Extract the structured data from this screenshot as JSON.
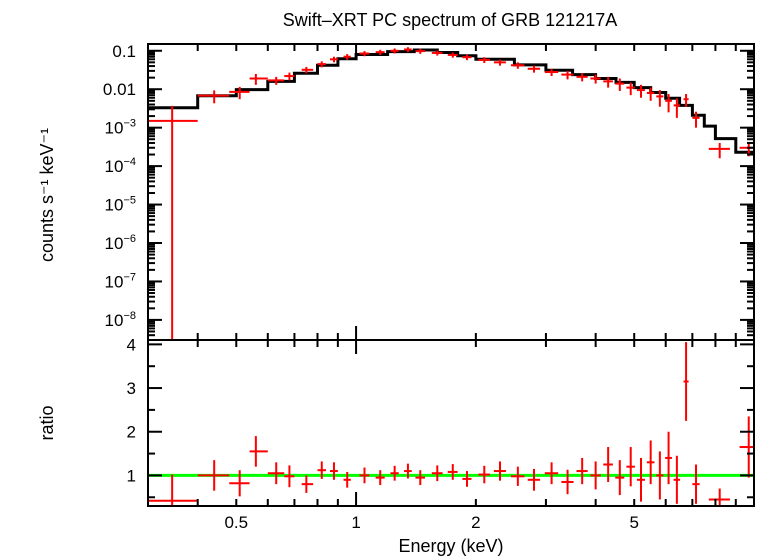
{
  "chart_data": [
    {
      "type": "scatter",
      "panel": "spectrum",
      "title": "Swift–XRT PC spectrum of GRB 121217A",
      "ylabel": "counts s⁻¹ keV⁻¹",
      "xlabel": "",
      "xscale": "log",
      "yscale": "log",
      "xlim": [
        0.3,
        10
      ],
      "ylim": [
        3e-09,
        0.15
      ],
      "grid": false,
      "ytick_labels": [
        {
          "value": 0.1,
          "label": "0.1"
        },
        {
          "value": 0.01,
          "label": "0.01"
        },
        {
          "value": 0.001,
          "label": "10",
          "exp": "−3"
        },
        {
          "value": 0.0001,
          "label": "10",
          "exp": "−4"
        },
        {
          "value": 1e-05,
          "label": "10",
          "exp": "−5"
        },
        {
          "value": 1e-06,
          "label": "10",
          "exp": "−6"
        },
        {
          "value": 1e-07,
          "label": "10",
          "exp": "−7"
        },
        {
          "value": 1e-08,
          "label": "10",
          "exp": "−8"
        }
      ],
      "colors": {
        "data": "#ff0000",
        "model": "#000000"
      },
      "model": {
        "edges": [
          0.3,
          0.4,
          0.5,
          0.6,
          0.7,
          0.8,
          0.9,
          1.0,
          1.2,
          1.4,
          1.6,
          1.8,
          2.0,
          2.5,
          3.0,
          3.5,
          4.0,
          4.5,
          5.0,
          5.5,
          6.0,
          6.5,
          7.0,
          7.5,
          8.0,
          9.0,
          10.0
        ],
        "values": [
          0.0033,
          0.0068,
          0.0098,
          0.016,
          0.026,
          0.042,
          0.062,
          0.08,
          0.095,
          0.105,
          0.09,
          0.074,
          0.06,
          0.043,
          0.031,
          0.024,
          0.019,
          0.015,
          0.011,
          0.0082,
          0.0058,
          0.0038,
          0.0021,
          0.0011,
          0.00052,
          0.00023
        ]
      },
      "points": [
        {
          "x": 0.345,
          "xerr": [
            0.045,
            0.055
          ],
          "y": 0.0015,
          "yerr": [
            0.0015,
            0.0022
          ]
        },
        {
          "x": 0.44,
          "xerr": [
            0.04,
            0.04
          ],
          "y": 0.0068,
          "yerr": [
            0.0025,
            0.0025
          ]
        },
        {
          "x": 0.51,
          "xerr": [
            0.03,
            0.03
          ],
          "y": 0.0085,
          "yerr": [
            0.003,
            0.003
          ]
        },
        {
          "x": 0.56,
          "xerr": [
            0.02,
            0.04
          ],
          "y": 0.019,
          "yerr": [
            0.006,
            0.006
          ]
        },
        {
          "x": 0.63,
          "xerr": [
            0.03,
            0.03
          ],
          "y": 0.017,
          "yerr": [
            0.004,
            0.004
          ]
        },
        {
          "x": 0.68,
          "xerr": [
            0.02,
            0.02
          ],
          "y": 0.022,
          "yerr": [
            0.005,
            0.005
          ]
        },
        {
          "x": 0.75,
          "xerr": [
            0.02,
            0.03
          ],
          "y": 0.032,
          "yerr": [
            0.006,
            0.006
          ]
        },
        {
          "x": 0.82,
          "xerr": [
            0.02,
            0.02
          ],
          "y": 0.045,
          "yerr": [
            0.008,
            0.008
          ]
        },
        {
          "x": 0.88,
          "xerr": [
            0.02,
            0.02
          ],
          "y": 0.06,
          "yerr": [
            0.01,
            0.01
          ]
        },
        {
          "x": 0.95,
          "xerr": [
            0.02,
            0.02
          ],
          "y": 0.07,
          "yerr": [
            0.012,
            0.012
          ]
        },
        {
          "x": 1.05,
          "xerr": [
            0.03,
            0.03
          ],
          "y": 0.085,
          "yerr": [
            0.013,
            0.013
          ]
        },
        {
          "x": 1.15,
          "xerr": [
            0.03,
            0.03
          ],
          "y": 0.092,
          "yerr": [
            0.014,
            0.014
          ]
        },
        {
          "x": 1.25,
          "xerr": [
            0.03,
            0.03
          ],
          "y": 0.1,
          "yerr": [
            0.015,
            0.015
          ]
        },
        {
          "x": 1.35,
          "xerr": [
            0.03,
            0.03
          ],
          "y": 0.108,
          "yerr": [
            0.016,
            0.016
          ]
        },
        {
          "x": 1.45,
          "xerr": [
            0.04,
            0.04
          ],
          "y": 0.098,
          "yerr": [
            0.015,
            0.015
          ]
        },
        {
          "x": 1.6,
          "xerr": [
            0.05,
            0.05
          ],
          "y": 0.088,
          "yerr": [
            0.013,
            0.013
          ]
        },
        {
          "x": 1.75,
          "xerr": [
            0.05,
            0.05
          ],
          "y": 0.078,
          "yerr": [
            0.012,
            0.012
          ]
        },
        {
          "x": 1.9,
          "xerr": [
            0.05,
            0.05
          ],
          "y": 0.068,
          "yerr": [
            0.011,
            0.011
          ]
        },
        {
          "x": 2.1,
          "xerr": [
            0.07,
            0.07
          ],
          "y": 0.058,
          "yerr": [
            0.01,
            0.01
          ]
        },
        {
          "x": 2.3,
          "xerr": [
            0.08,
            0.08
          ],
          "y": 0.05,
          "yerr": [
            0.009,
            0.009
          ]
        },
        {
          "x": 2.55,
          "xerr": [
            0.1,
            0.1
          ],
          "y": 0.042,
          "yerr": [
            0.008,
            0.008
          ]
        },
        {
          "x": 2.8,
          "xerr": [
            0.1,
            0.1
          ],
          "y": 0.034,
          "yerr": [
            0.007,
            0.007
          ]
        },
        {
          "x": 3.1,
          "xerr": [
            0.12,
            0.12
          ],
          "y": 0.028,
          "yerr": [
            0.006,
            0.006
          ]
        },
        {
          "x": 3.4,
          "xerr": [
            0.12,
            0.12
          ],
          "y": 0.024,
          "yerr": [
            0.006,
            0.006
          ]
        },
        {
          "x": 3.7,
          "xerr": [
            0.12,
            0.12
          ],
          "y": 0.021,
          "yerr": [
            0.005,
            0.005
          ]
        },
        {
          "x": 4.0,
          "xerr": [
            0.12,
            0.12
          ],
          "y": 0.019,
          "yerr": [
            0.005,
            0.005
          ]
        },
        {
          "x": 4.3,
          "xerr": [
            0.12,
            0.12
          ],
          "y": 0.016,
          "yerr": [
            0.005,
            0.005
          ]
        },
        {
          "x": 4.6,
          "xerr": [
            0.12,
            0.12
          ],
          "y": 0.014,
          "yerr": [
            0.005,
            0.005
          ]
        },
        {
          "x": 4.9,
          "xerr": [
            0.12,
            0.12
          ],
          "y": 0.011,
          "yerr": [
            0.004,
            0.004
          ]
        },
        {
          "x": 5.2,
          "xerr": [
            0.12,
            0.12
          ],
          "y": 0.0095,
          "yerr": [
            0.0035,
            0.0035
          ]
        },
        {
          "x": 5.5,
          "xerr": [
            0.12,
            0.12
          ],
          "y": 0.008,
          "yerr": [
            0.003,
            0.003
          ]
        },
        {
          "x": 5.8,
          "xerr": [
            0.12,
            0.12
          ],
          "y": 0.0065,
          "yerr": [
            0.003,
            0.003
          ]
        },
        {
          "x": 6.1,
          "xerr": [
            0.12,
            0.12
          ],
          "y": 0.005,
          "yerr": [
            0.0025,
            0.0025
          ]
        },
        {
          "x": 6.4,
          "xerr": [
            0.12,
            0.12
          ],
          "y": 0.0038,
          "yerr": [
            0.002,
            0.002
          ]
        },
        {
          "x": 6.75,
          "xerr": [
            0.1,
            0.1
          ],
          "y": 0.0055,
          "yerr": [
            0.002,
            0.002
          ]
        },
        {
          "x": 7.15,
          "xerr": [
            0.15,
            0.15
          ],
          "y": 0.0018,
          "yerr": [
            0.0008,
            0.0008
          ]
        },
        {
          "x": 8.2,
          "xerr": [
            0.5,
            0.5
          ],
          "y": 0.00028,
          "yerr": [
            0.00012,
            0.00012
          ]
        },
        {
          "x": 9.7,
          "xerr": [
            0.5,
            0.3
          ],
          "y": 0.0003,
          "yerr": [
            0.00012,
            0.00012
          ]
        }
      ]
    },
    {
      "type": "scatter",
      "panel": "ratio",
      "xlabel": "Energy (keV)",
      "ylabel": "ratio",
      "xscale": "log",
      "yscale": "linear",
      "xlim": [
        0.3,
        10
      ],
      "ylim": [
        0.3,
        4.1
      ],
      "grid": false,
      "xtick_labels": [
        {
          "value": 0.5,
          "label": "0.5"
        },
        {
          "value": 1,
          "label": "1"
        },
        {
          "value": 2,
          "label": "2"
        },
        {
          "value": 5,
          "label": "5"
        }
      ],
      "ytick_labels": [
        {
          "value": 1,
          "label": "1"
        },
        {
          "value": 2,
          "label": "2"
        },
        {
          "value": 3,
          "label": "3"
        },
        {
          "value": 4,
          "label": "4"
        }
      ],
      "reference_line": {
        "y": 1,
        "color": "#00ff00"
      },
      "colors": {
        "data": "#ff0000"
      },
      "points": [
        {
          "x": 0.345,
          "xerr": [
            0.045,
            0.055
          ],
          "y": 0.42,
          "yerr": [
            0.42,
            0.6
          ]
        },
        {
          "x": 0.44,
          "xerr": [
            0.04,
            0.04
          ],
          "y": 1.0,
          "yerr": [
            0.35,
            0.35
          ]
        },
        {
          "x": 0.51,
          "xerr": [
            0.03,
            0.03
          ],
          "y": 0.82,
          "yerr": [
            0.3,
            0.3
          ]
        },
        {
          "x": 0.56,
          "xerr": [
            0.02,
            0.04
          ],
          "y": 1.55,
          "yerr": [
            0.35,
            0.35
          ]
        },
        {
          "x": 0.63,
          "xerr": [
            0.03,
            0.03
          ],
          "y": 1.05,
          "yerr": [
            0.25,
            0.25
          ]
        },
        {
          "x": 0.68,
          "xerr": [
            0.02,
            0.02
          ],
          "y": 0.98,
          "yerr": [
            0.25,
            0.25
          ]
        },
        {
          "x": 0.75,
          "xerr": [
            0.02,
            0.03
          ],
          "y": 0.8,
          "yerr": [
            0.2,
            0.2
          ]
        },
        {
          "x": 0.82,
          "xerr": [
            0.02,
            0.02
          ],
          "y": 1.12,
          "yerr": [
            0.2,
            0.2
          ]
        },
        {
          "x": 0.88,
          "xerr": [
            0.02,
            0.02
          ],
          "y": 1.1,
          "yerr": [
            0.2,
            0.2
          ]
        },
        {
          "x": 0.95,
          "xerr": [
            0.02,
            0.02
          ],
          "y": 0.9,
          "yerr": [
            0.18,
            0.18
          ]
        },
        {
          "x": 1.05,
          "xerr": [
            0.03,
            0.03
          ],
          "y": 1.0,
          "yerr": [
            0.18,
            0.18
          ]
        },
        {
          "x": 1.15,
          "xerr": [
            0.03,
            0.03
          ],
          "y": 0.95,
          "yerr": [
            0.17,
            0.17
          ]
        },
        {
          "x": 1.25,
          "xerr": [
            0.03,
            0.03
          ],
          "y": 1.05,
          "yerr": [
            0.17,
            0.17
          ]
        },
        {
          "x": 1.35,
          "xerr": [
            0.03,
            0.03
          ],
          "y": 1.1,
          "yerr": [
            0.17,
            0.17
          ]
        },
        {
          "x": 1.45,
          "xerr": [
            0.04,
            0.04
          ],
          "y": 0.95,
          "yerr": [
            0.17,
            0.17
          ]
        },
        {
          "x": 1.6,
          "xerr": [
            0.05,
            0.05
          ],
          "y": 1.05,
          "yerr": [
            0.18,
            0.18
          ]
        },
        {
          "x": 1.75,
          "xerr": [
            0.05,
            0.05
          ],
          "y": 1.08,
          "yerr": [
            0.18,
            0.18
          ]
        },
        {
          "x": 1.9,
          "xerr": [
            0.05,
            0.05
          ],
          "y": 0.92,
          "yerr": [
            0.18,
            0.18
          ]
        },
        {
          "x": 2.1,
          "xerr": [
            0.07,
            0.07
          ],
          "y": 1.02,
          "yerr": [
            0.2,
            0.2
          ]
        },
        {
          "x": 2.3,
          "xerr": [
            0.08,
            0.08
          ],
          "y": 1.1,
          "yerr": [
            0.22,
            0.22
          ]
        },
        {
          "x": 2.55,
          "xerr": [
            0.1,
            0.1
          ],
          "y": 0.98,
          "yerr": [
            0.22,
            0.22
          ]
        },
        {
          "x": 2.8,
          "xerr": [
            0.1,
            0.1
          ],
          "y": 0.9,
          "yerr": [
            0.25,
            0.25
          ]
        },
        {
          "x": 3.1,
          "xerr": [
            0.12,
            0.12
          ],
          "y": 1.05,
          "yerr": [
            0.25,
            0.25
          ]
        },
        {
          "x": 3.4,
          "xerr": [
            0.12,
            0.12
          ],
          "y": 0.85,
          "yerr": [
            0.28,
            0.28
          ]
        },
        {
          "x": 3.7,
          "xerr": [
            0.12,
            0.12
          ],
          "y": 1.1,
          "yerr": [
            0.3,
            0.3
          ]
        },
        {
          "x": 4.0,
          "xerr": [
            0.12,
            0.12
          ],
          "y": 1.0,
          "yerr": [
            0.32,
            0.32
          ]
        },
        {
          "x": 4.3,
          "xerr": [
            0.12,
            0.12
          ],
          "y": 1.25,
          "yerr": [
            0.4,
            0.4
          ]
        },
        {
          "x": 4.6,
          "xerr": [
            0.12,
            0.12
          ],
          "y": 0.95,
          "yerr": [
            0.4,
            0.4
          ]
        },
        {
          "x": 4.9,
          "xerr": [
            0.12,
            0.12
          ],
          "y": 1.2,
          "yerr": [
            0.45,
            0.45
          ]
        },
        {
          "x": 5.2,
          "xerr": [
            0.12,
            0.12
          ],
          "y": 0.9,
          "yerr": [
            0.5,
            0.5
          ]
        },
        {
          "x": 5.5,
          "xerr": [
            0.12,
            0.12
          ],
          "y": 1.3,
          "yerr": [
            0.5,
            0.5
          ]
        },
        {
          "x": 5.8,
          "xerr": [
            0.12,
            0.12
          ],
          "y": 1.0,
          "yerr": [
            0.55,
            0.55
          ]
        },
        {
          "x": 6.1,
          "xerr": [
            0.12,
            0.12
          ],
          "y": 1.4,
          "yerr": [
            0.6,
            0.6
          ]
        },
        {
          "x": 6.4,
          "xerr": [
            0.12,
            0.12
          ],
          "y": 0.9,
          "yerr": [
            0.55,
            0.55
          ]
        },
        {
          "x": 6.75,
          "xerr": [
            0.1,
            0.1
          ],
          "y": 3.15,
          "yerr": [
            0.9,
            0.9
          ]
        },
        {
          "x": 7.15,
          "xerr": [
            0.15,
            0.15
          ],
          "y": 0.8,
          "yerr": [
            0.45,
            0.45
          ]
        },
        {
          "x": 8.2,
          "xerr": [
            0.5,
            0.5
          ],
          "y": 0.45,
          "yerr": [
            0.25,
            0.25
          ]
        },
        {
          "x": 9.7,
          "xerr": [
            0.5,
            0.3
          ],
          "y": 1.65,
          "yerr": [
            0.7,
            0.7
          ]
        }
      ]
    }
  ]
}
